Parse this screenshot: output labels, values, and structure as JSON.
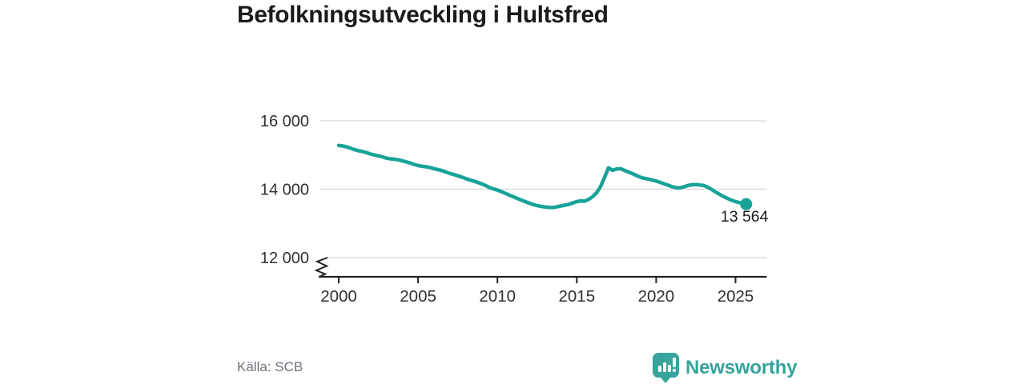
{
  "header": {
    "title": "Befolkningsutveckling i Hultsfred"
  },
  "footer": {
    "source": "Källa: SCB",
    "brand_name": "Newsworthy"
  },
  "colors": {
    "line": "#17a398",
    "logo": "#38a59d",
    "grid": "#dddddd",
    "axis": "#222222",
    "tick_text": "#303030",
    "title_text": "#1b1b1b",
    "muted_text": "#70737c"
  },
  "chart_data": {
    "type": "line",
    "title": "Befolkningsutveckling i Hultsfred",
    "xlabel": "",
    "ylabel": "",
    "grid": "horizontal",
    "legend": "none",
    "axis_break_at_bottom": true,
    "xlim": [
      1998.7,
      2027
    ],
    "ylim": [
      12000,
      16400
    ],
    "x_ticks": [
      2000,
      2005,
      2010,
      2015,
      2020,
      2025
    ],
    "x_tick_labels": [
      "2000",
      "2005",
      "2010",
      "2015",
      "2020",
      "2025"
    ],
    "y_ticks": [
      12000,
      14000,
      16000
    ],
    "y_tick_labels": [
      "12 000",
      "14 000",
      "16 000"
    ],
    "source": "Källa: SCB",
    "last_point": {
      "x": 2025.67,
      "y": 13564,
      "label": "13 564"
    },
    "series": [
      {
        "name": "Befolkning i Hultsfred",
        "points": [
          [
            2000.0,
            15280
          ],
          [
            2000.25,
            15262
          ],
          [
            2000.5,
            15238
          ],
          [
            2000.75,
            15198
          ],
          [
            2001.0,
            15155
          ],
          [
            2001.25,
            15125
          ],
          [
            2001.5,
            15102
          ],
          [
            2001.75,
            15068
          ],
          [
            2002.0,
            15030
          ],
          [
            2002.25,
            14998
          ],
          [
            2002.5,
            14975
          ],
          [
            2002.75,
            14948
          ],
          [
            2003.0,
            14908
          ],
          [
            2003.25,
            14890
          ],
          [
            2003.5,
            14878
          ],
          [
            2003.75,
            14858
          ],
          [
            2004.0,
            14830
          ],
          [
            2004.25,
            14800
          ],
          [
            2004.5,
            14768
          ],
          [
            2004.75,
            14726
          ],
          [
            2005.0,
            14690
          ],
          [
            2005.25,
            14672
          ],
          [
            2005.5,
            14655
          ],
          [
            2005.75,
            14634
          ],
          [
            2006.0,
            14600
          ],
          [
            2006.25,
            14572
          ],
          [
            2006.5,
            14544
          ],
          [
            2006.75,
            14502
          ],
          [
            2007.0,
            14460
          ],
          [
            2007.25,
            14428
          ],
          [
            2007.5,
            14394
          ],
          [
            2007.75,
            14356
          ],
          [
            2008.0,
            14310
          ],
          [
            2008.25,
            14272
          ],
          [
            2008.5,
            14238
          ],
          [
            2008.75,
            14198
          ],
          [
            2009.0,
            14160
          ],
          [
            2009.25,
            14108
          ],
          [
            2009.5,
            14050
          ],
          [
            2009.75,
            14008
          ],
          [
            2010.0,
            13975
          ],
          [
            2010.25,
            13928
          ],
          [
            2010.5,
            13878
          ],
          [
            2010.75,
            13828
          ],
          [
            2011.0,
            13780
          ],
          [
            2011.25,
            13728
          ],
          [
            2011.5,
            13682
          ],
          [
            2011.75,
            13638
          ],
          [
            2012.0,
            13592
          ],
          [
            2012.25,
            13552
          ],
          [
            2012.5,
            13520
          ],
          [
            2012.75,
            13496
          ],
          [
            2013.0,
            13480
          ],
          [
            2013.25,
            13468
          ],
          [
            2013.5,
            13465
          ],
          [
            2013.75,
            13482
          ],
          [
            2014.0,
            13512
          ],
          [
            2014.25,
            13532
          ],
          [
            2014.5,
            13558
          ],
          [
            2014.75,
            13598
          ],
          [
            2015.0,
            13638
          ],
          [
            2015.25,
            13658
          ],
          [
            2015.5,
            13648
          ],
          [
            2015.75,
            13702
          ],
          [
            2016.0,
            13782
          ],
          [
            2016.25,
            13898
          ],
          [
            2016.5,
            14078
          ],
          [
            2016.75,
            14348
          ],
          [
            2017.0,
            14628
          ],
          [
            2017.25,
            14552
          ],
          [
            2017.5,
            14592
          ],
          [
            2017.75,
            14602
          ],
          [
            2018.0,
            14552
          ],
          [
            2018.25,
            14502
          ],
          [
            2018.5,
            14458
          ],
          [
            2018.75,
            14402
          ],
          [
            2019.0,
            14352
          ],
          [
            2019.25,
            14318
          ],
          [
            2019.5,
            14298
          ],
          [
            2019.75,
            14268
          ],
          [
            2020.0,
            14238
          ],
          [
            2020.25,
            14198
          ],
          [
            2020.5,
            14158
          ],
          [
            2020.75,
            14118
          ],
          [
            2021.0,
            14072
          ],
          [
            2021.25,
            14044
          ],
          [
            2021.5,
            14040
          ],
          [
            2021.75,
            14068
          ],
          [
            2022.0,
            14108
          ],
          [
            2022.25,
            14128
          ],
          [
            2022.5,
            14138
          ],
          [
            2022.75,
            14122
          ],
          [
            2023.0,
            14108
          ],
          [
            2023.25,
            14058
          ],
          [
            2023.5,
            13988
          ],
          [
            2023.75,
            13918
          ],
          [
            2024.0,
            13848
          ],
          [
            2024.25,
            13788
          ],
          [
            2024.5,
            13728
          ],
          [
            2024.75,
            13678
          ],
          [
            2025.0,
            13638
          ],
          [
            2025.25,
            13608
          ],
          [
            2025.5,
            13582
          ],
          [
            2025.67,
            13564
          ]
        ]
      }
    ]
  }
}
